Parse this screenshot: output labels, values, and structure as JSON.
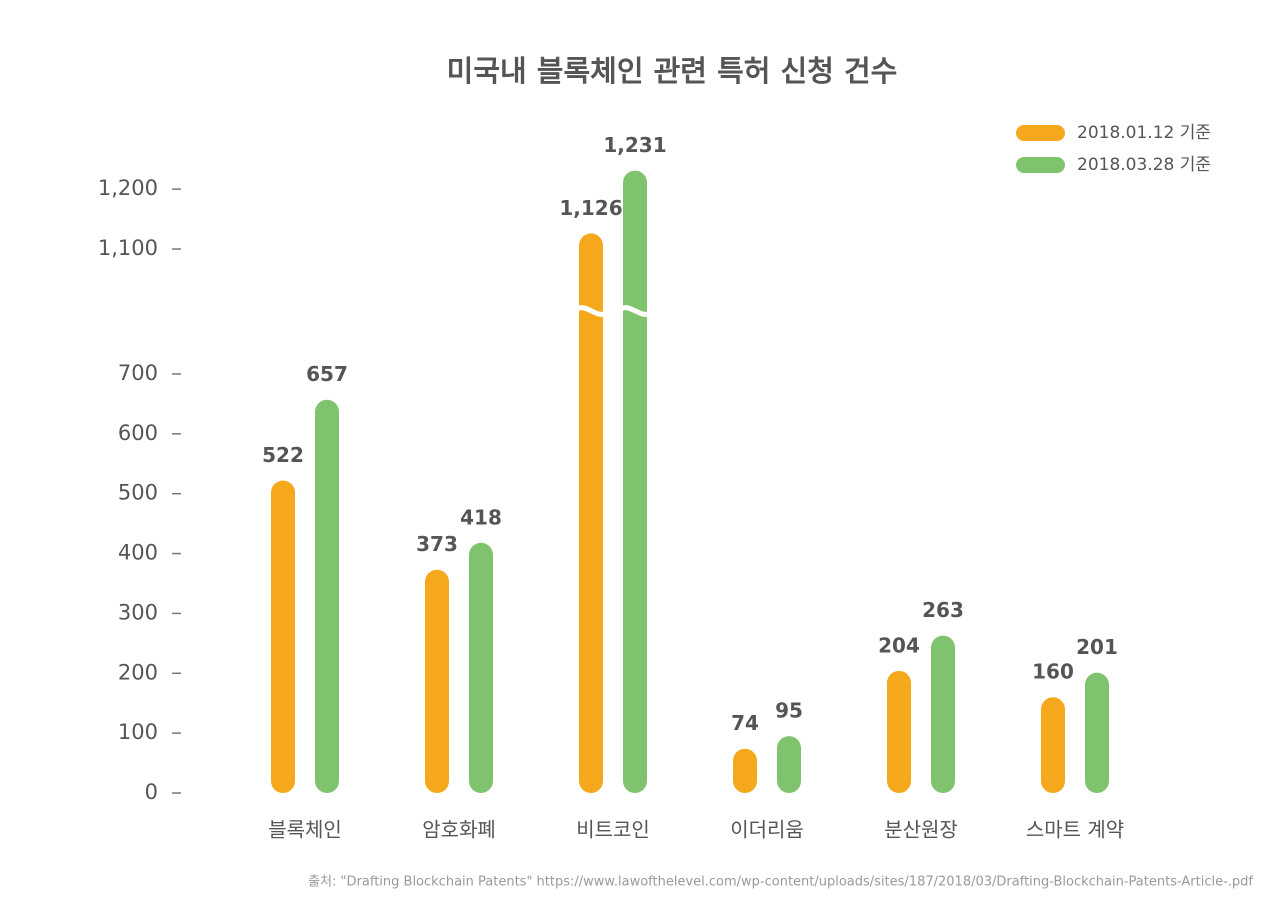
{
  "chart_data": {
    "type": "bar",
    "title": "미국내 블록체인 관련 특허 신청 건수",
    "categories": [
      "블록체인",
      "암호화폐",
      "비트코인",
      "이더리움",
      "분산원장",
      "스마트 계약"
    ],
    "series": [
      {
        "name": "2018.01.12 기준",
        "color": "#f5a81c",
        "values": [
          522,
          373,
          1126,
          74,
          204,
          160
        ],
        "value_labels": [
          "522",
          "373",
          "1,126",
          "74",
          "204",
          "160"
        ]
      },
      {
        "name": "2018.03.28 기준",
        "color": "#80c36e",
        "values": [
          657,
          418,
          1231,
          95,
          263,
          201
        ],
        "value_labels": [
          "657",
          "418",
          "1,231",
          "95",
          "263",
          "201"
        ]
      }
    ],
    "ylim": [
      0,
      1200
    ],
    "yticks": [
      0,
      100,
      200,
      300,
      400,
      500,
      600,
      700,
      {
        "value": 1100,
        "label": "1,100"
      },
      {
        "value": 1200,
        "label": "1,200"
      }
    ],
    "axis_break": [
      700,
      1100
    ],
    "legend": "top-right",
    "source": "출처: \"Drafting Blockchain Patents\" https://www.lawofthelevel.com/wp-content/uploads/sites/187/2018/03/Drafting-Blockchain-Patents-Article-.pdf"
  }
}
